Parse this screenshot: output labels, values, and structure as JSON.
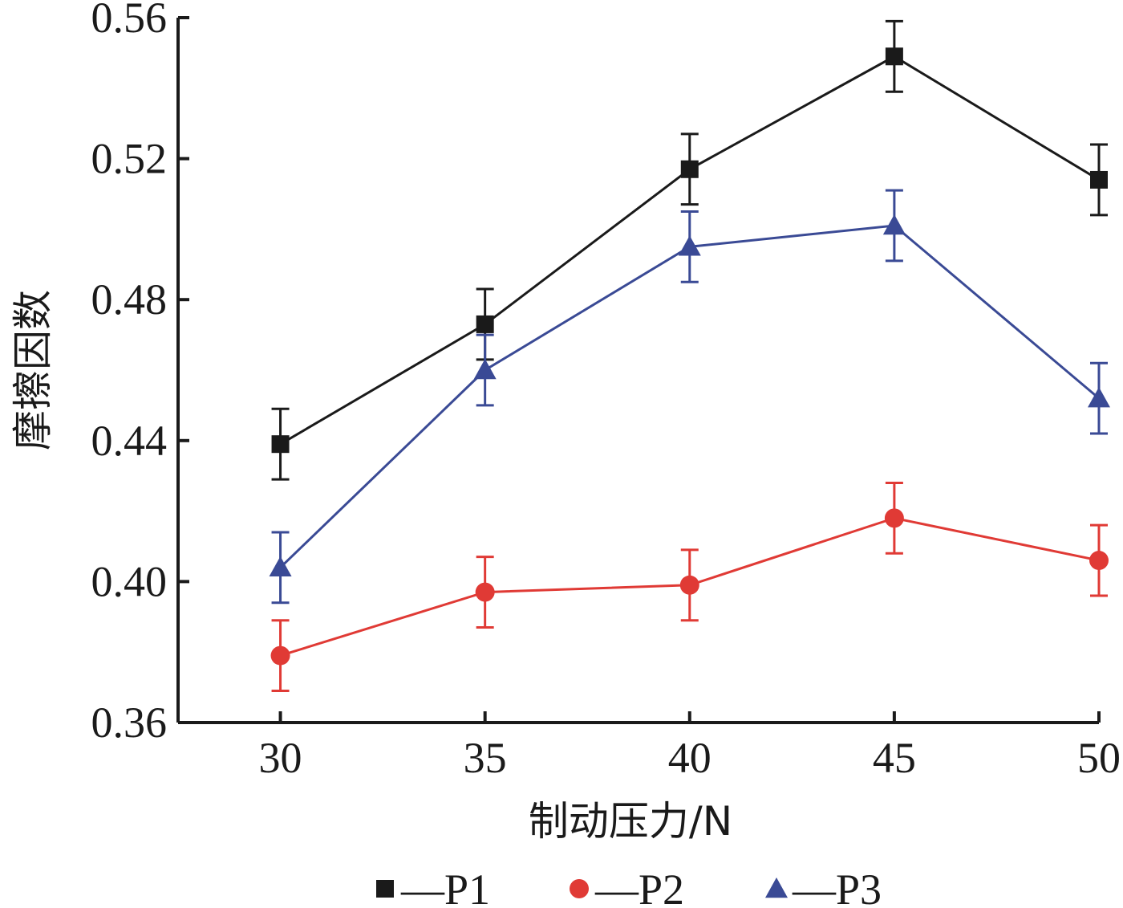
{
  "chart_data": {
    "type": "line",
    "xlabel": "制动压力/N",
    "ylabel": "摩擦因数",
    "x": [
      30,
      35,
      40,
      45,
      50
    ],
    "xlim": [
      27.5,
      50
    ],
    "ylim": [
      0.36,
      0.56
    ],
    "x_ticks": [
      "30",
      "35",
      "40",
      "45",
      "50"
    ],
    "y_ticks": [
      "0.36",
      "0.40",
      "0.44",
      "0.48",
      "0.52",
      "0.56"
    ],
    "grid": false,
    "legend_position": "bottom",
    "error_bars": true,
    "series": [
      {
        "name": "—P1",
        "marker": "square",
        "color": "#1a1a1a",
        "values": [
          0.439,
          0.473,
          0.517,
          0.549,
          0.514
        ],
        "error": [
          0.01,
          0.01,
          0.01,
          0.01,
          0.01
        ]
      },
      {
        "name": "—P2",
        "marker": "circle",
        "color": "#e03a35",
        "values": [
          0.379,
          0.397,
          0.399,
          0.418,
          0.406
        ],
        "error": [
          0.01,
          0.01,
          0.01,
          0.01,
          0.01
        ]
      },
      {
        "name": "—P3",
        "marker": "triangle",
        "color": "#3a4a95",
        "values": [
          0.404,
          0.46,
          0.495,
          0.501,
          0.452
        ],
        "error": [
          0.01,
          0.01,
          0.01,
          0.01,
          0.01
        ]
      }
    ]
  }
}
